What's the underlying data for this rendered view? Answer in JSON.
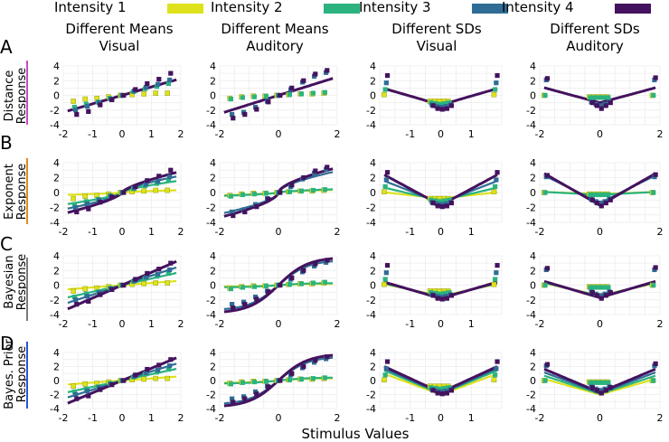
{
  "figure": {
    "xlabel": "Stimulus Values",
    "legend": {
      "placement": "top",
      "entries": [
        {
          "label": "Intensity 1",
          "color": "#dde21c"
        },
        {
          "label": "Intensity 2",
          "color": "#2bb37f"
        },
        {
          "label": "Intensity 3",
          "color": "#2f6d96"
        },
        {
          "label": "Intensity 4",
          "color": "#44125e"
        }
      ]
    },
    "columns": [
      {
        "line1": "Different Means",
        "line2": "Visual"
      },
      {
        "line1": "Different Means",
        "line2": "Auditory"
      },
      {
        "line1": "Different SDs",
        "line2": "Visual"
      },
      {
        "line1": "Different SDs",
        "line2": "Auditory"
      }
    ],
    "rows": [
      {
        "letter": "A",
        "line1": "Distance",
        "line2": "Response",
        "accent": "#c84bc6"
      },
      {
        "letter": "B",
        "line1": "Exponent",
        "line2": "Response",
        "accent": "#e08a1e"
      },
      {
        "letter": "C",
        "line1": "Bayesian",
        "line2": "Response",
        "accent": "#7a7a7a"
      },
      {
        "letter": "D",
        "line1": "Bayes. Prior",
        "line2": "Response",
        "accent": "#2c55d6"
      }
    ]
  },
  "chart_data": {
    "type": "scatter",
    "description_grid": "4 rows x 4 columns of small multiples; square markers = data, lines = model fits",
    "xlim": [
      -2,
      2
    ],
    "ylim": [
      -4,
      4
    ],
    "x_ticks": [
      -2,
      -1,
      0,
      1,
      2
    ],
    "y_ticks": [
      -4,
      -2,
      0,
      2,
      4
    ],
    "x_ticks_by_column": [
      [
        -2,
        -1,
        0,
        1,
        2
      ],
      [
        -2,
        0,
        2
      ],
      [
        -1,
        0,
        1
      ],
      [
        -2,
        0,
        2
      ]
    ],
    "x_points": {
      "means": [
        -1.6,
        -1.2,
        -0.8,
        -0.4,
        0.0,
        0.4,
        0.8,
        1.2,
        1.6
      ],
      "sds": [
        -1.8,
        -0.3,
        -0.15,
        0.0,
        0.15,
        0.3,
        1.8
      ]
    },
    "data_points": {
      "means_visual": [
        {
          "series": "Intensity 1",
          "y": [
            -0.8,
            -0.5,
            -0.4,
            -0.2,
            0.0,
            0.1,
            0.2,
            0.3,
            0.3
          ]
        },
        {
          "series": "Intensity 2",
          "y": [
            -1.6,
            -1.2,
            -0.9,
            -0.4,
            0.0,
            0.5,
            0.9,
            1.2,
            1.6
          ]
        },
        {
          "series": "Intensity 3",
          "y": [
            -2.0,
            -1.5,
            -1.0,
            -0.5,
            0.0,
            0.6,
            1.1,
            1.5,
            2.1
          ]
        },
        {
          "series": "Intensity 4",
          "y": [
            -2.6,
            -2.2,
            -1.3,
            -0.6,
            0.0,
            0.8,
            1.6,
            2.2,
            3.0
          ]
        }
      ],
      "means_auditory": [
        {
          "series": "Intensity 1",
          "y": [
            -0.4,
            -0.2,
            -0.1,
            -0.1,
            0.0,
            0.1,
            0.2,
            0.2,
            0.3
          ]
        },
        {
          "series": "Intensity 2",
          "y": [
            -0.5,
            -0.3,
            -0.2,
            -0.1,
            0.0,
            0.1,
            0.2,
            0.3,
            0.4
          ]
        },
        {
          "series": "Intensity 3",
          "y": [
            -2.6,
            -2.3,
            -1.6,
            -0.8,
            0.0,
            0.8,
            1.8,
            2.6,
            3.1
          ]
        },
        {
          "series": "Intensity 4",
          "y": [
            -3.1,
            -2.6,
            -1.9,
            -0.9,
            0.0,
            1.0,
            2.0,
            2.9,
            3.4
          ]
        }
      ],
      "sds_visual": [
        {
          "series": "Intensity 1",
          "y": [
            0.1,
            -0.8,
            -0.8,
            -0.8,
            -0.8,
            -0.8,
            0.1
          ]
        },
        {
          "series": "Intensity 2",
          "y": [
            0.8,
            -1.0,
            -1.1,
            -1.2,
            -1.1,
            -1.0,
            0.8
          ]
        },
        {
          "series": "Intensity 3",
          "y": [
            1.7,
            -1.3,
            -1.5,
            -1.6,
            -1.5,
            -1.3,
            1.7
          ]
        },
        {
          "series": "Intensity 4",
          "y": [
            2.7,
            -1.4,
            -1.8,
            -1.9,
            -1.8,
            -1.4,
            2.7
          ]
        }
      ],
      "sds_auditory": [
        {
          "series": "Intensity 1",
          "y": [
            0.0,
            -0.2,
            -0.2,
            -0.2,
            -0.2,
            -0.2,
            0.0
          ]
        },
        {
          "series": "Intensity 2",
          "y": [
            0.0,
            -0.3,
            -0.3,
            -0.3,
            -0.3,
            -0.3,
            0.0
          ]
        },
        {
          "series": "Intensity 3",
          "y": [
            2.1,
            -0.9,
            -1.2,
            -1.4,
            -1.2,
            -0.9,
            2.1
          ]
        },
        {
          "series": "Intensity 4",
          "y": [
            2.3,
            -1.0,
            -1.4,
            -1.8,
            -1.4,
            -1.0,
            2.4
          ]
        }
      ]
    },
    "model_fits": {
      "A_distance": {
        "means_visual": {
          "form": "linear",
          "slopes": [
            1.15,
            1.15,
            1.15,
            1.15
          ]
        },
        "means_auditory": {
          "form": "linear",
          "slopes": [
            1.25,
            1.25,
            1.25,
            1.25
          ]
        },
        "sds_visual": {
          "form": "abs",
          "offset": [
            -1.3,
            -1.3,
            -1.3,
            -1.3
          ],
          "slope": [
            1.2,
            1.2,
            1.2,
            1.2
          ]
        },
        "sds_auditory": {
          "form": "abs",
          "offset": [
            -1.0,
            -1.0,
            -1.0,
            -1.0
          ],
          "slope": [
            1.1,
            1.1,
            1.1,
            1.1
          ]
        }
      },
      "B_exponent": {
        "means_visual": {
          "form": "power",
          "scale": [
            0.2,
            1.0,
            1.4,
            1.75
          ],
          "exponent": [
            0.7,
            0.7,
            0.7,
            0.7
          ]
        },
        "means_auditory": {
          "form": "power",
          "scale": [
            0.25,
            0.3,
            1.9,
            2.2
          ],
          "exponent": [
            0.6,
            0.6,
            0.6,
            0.6
          ]
        },
        "sds_visual": {
          "form": "abs",
          "offset": [
            -0.8,
            -1.1,
            -1.4,
            -1.7
          ],
          "slope": [
            0.45,
            0.95,
            1.6,
            2.2
          ]
        },
        "sds_auditory": {
          "form": "abs",
          "offset": [
            -0.2,
            -0.3,
            -1.4,
            -1.7
          ],
          "slope": [
            0.15,
            0.2,
            2.0,
            2.3
          ]
        }
      },
      "C_bayesian": {
        "means_visual": {
          "form": "linear",
          "slopes": [
            0.3,
            0.9,
            1.3,
            1.75
          ]
        },
        "means_auditory": {
          "form": "sigmoid",
          "scale": [
            0.2,
            0.3,
            3.6,
            4.0
          ],
          "steepness": [
            1.0,
            1.0,
            1.0,
            1.0
          ]
        },
        "sds_visual": {
          "form": "abs",
          "offset": [
            -1.5,
            -1.6,
            -1.7,
            -1.8
          ],
          "slope": [
            0.9,
            1.0,
            1.1,
            1.2
          ]
        },
        "sds_auditory": {
          "form": "abs",
          "offset": [
            -1.4,
            -1.5,
            -1.6,
            -1.7
          ],
          "slope": [
            0.9,
            1.0,
            1.1,
            1.2
          ]
        }
      },
      "D_bayes_prior": {
        "means_visual": {
          "form": "linear",
          "slopes": [
            0.3,
            0.9,
            1.3,
            1.75
          ]
        },
        "means_auditory": {
          "form": "sigmoid",
          "scale": [
            0.35,
            0.45,
            3.6,
            4.0
          ],
          "steepness": [
            1.0,
            1.0,
            1.0,
            1.0
          ]
        },
        "sds_visual": {
          "form": "abs",
          "offset": [
            -2.0,
            -1.9,
            -1.8,
            -1.7
          ],
          "slope": [
            1.6,
            1.8,
            1.9,
            2.0
          ]
        },
        "sds_auditory": {
          "form": "abs",
          "offset": [
            -2.0,
            -1.9,
            -1.8,
            -1.7
          ],
          "slope": [
            1.2,
            1.4,
            1.6,
            1.8
          ]
        }
      }
    }
  }
}
